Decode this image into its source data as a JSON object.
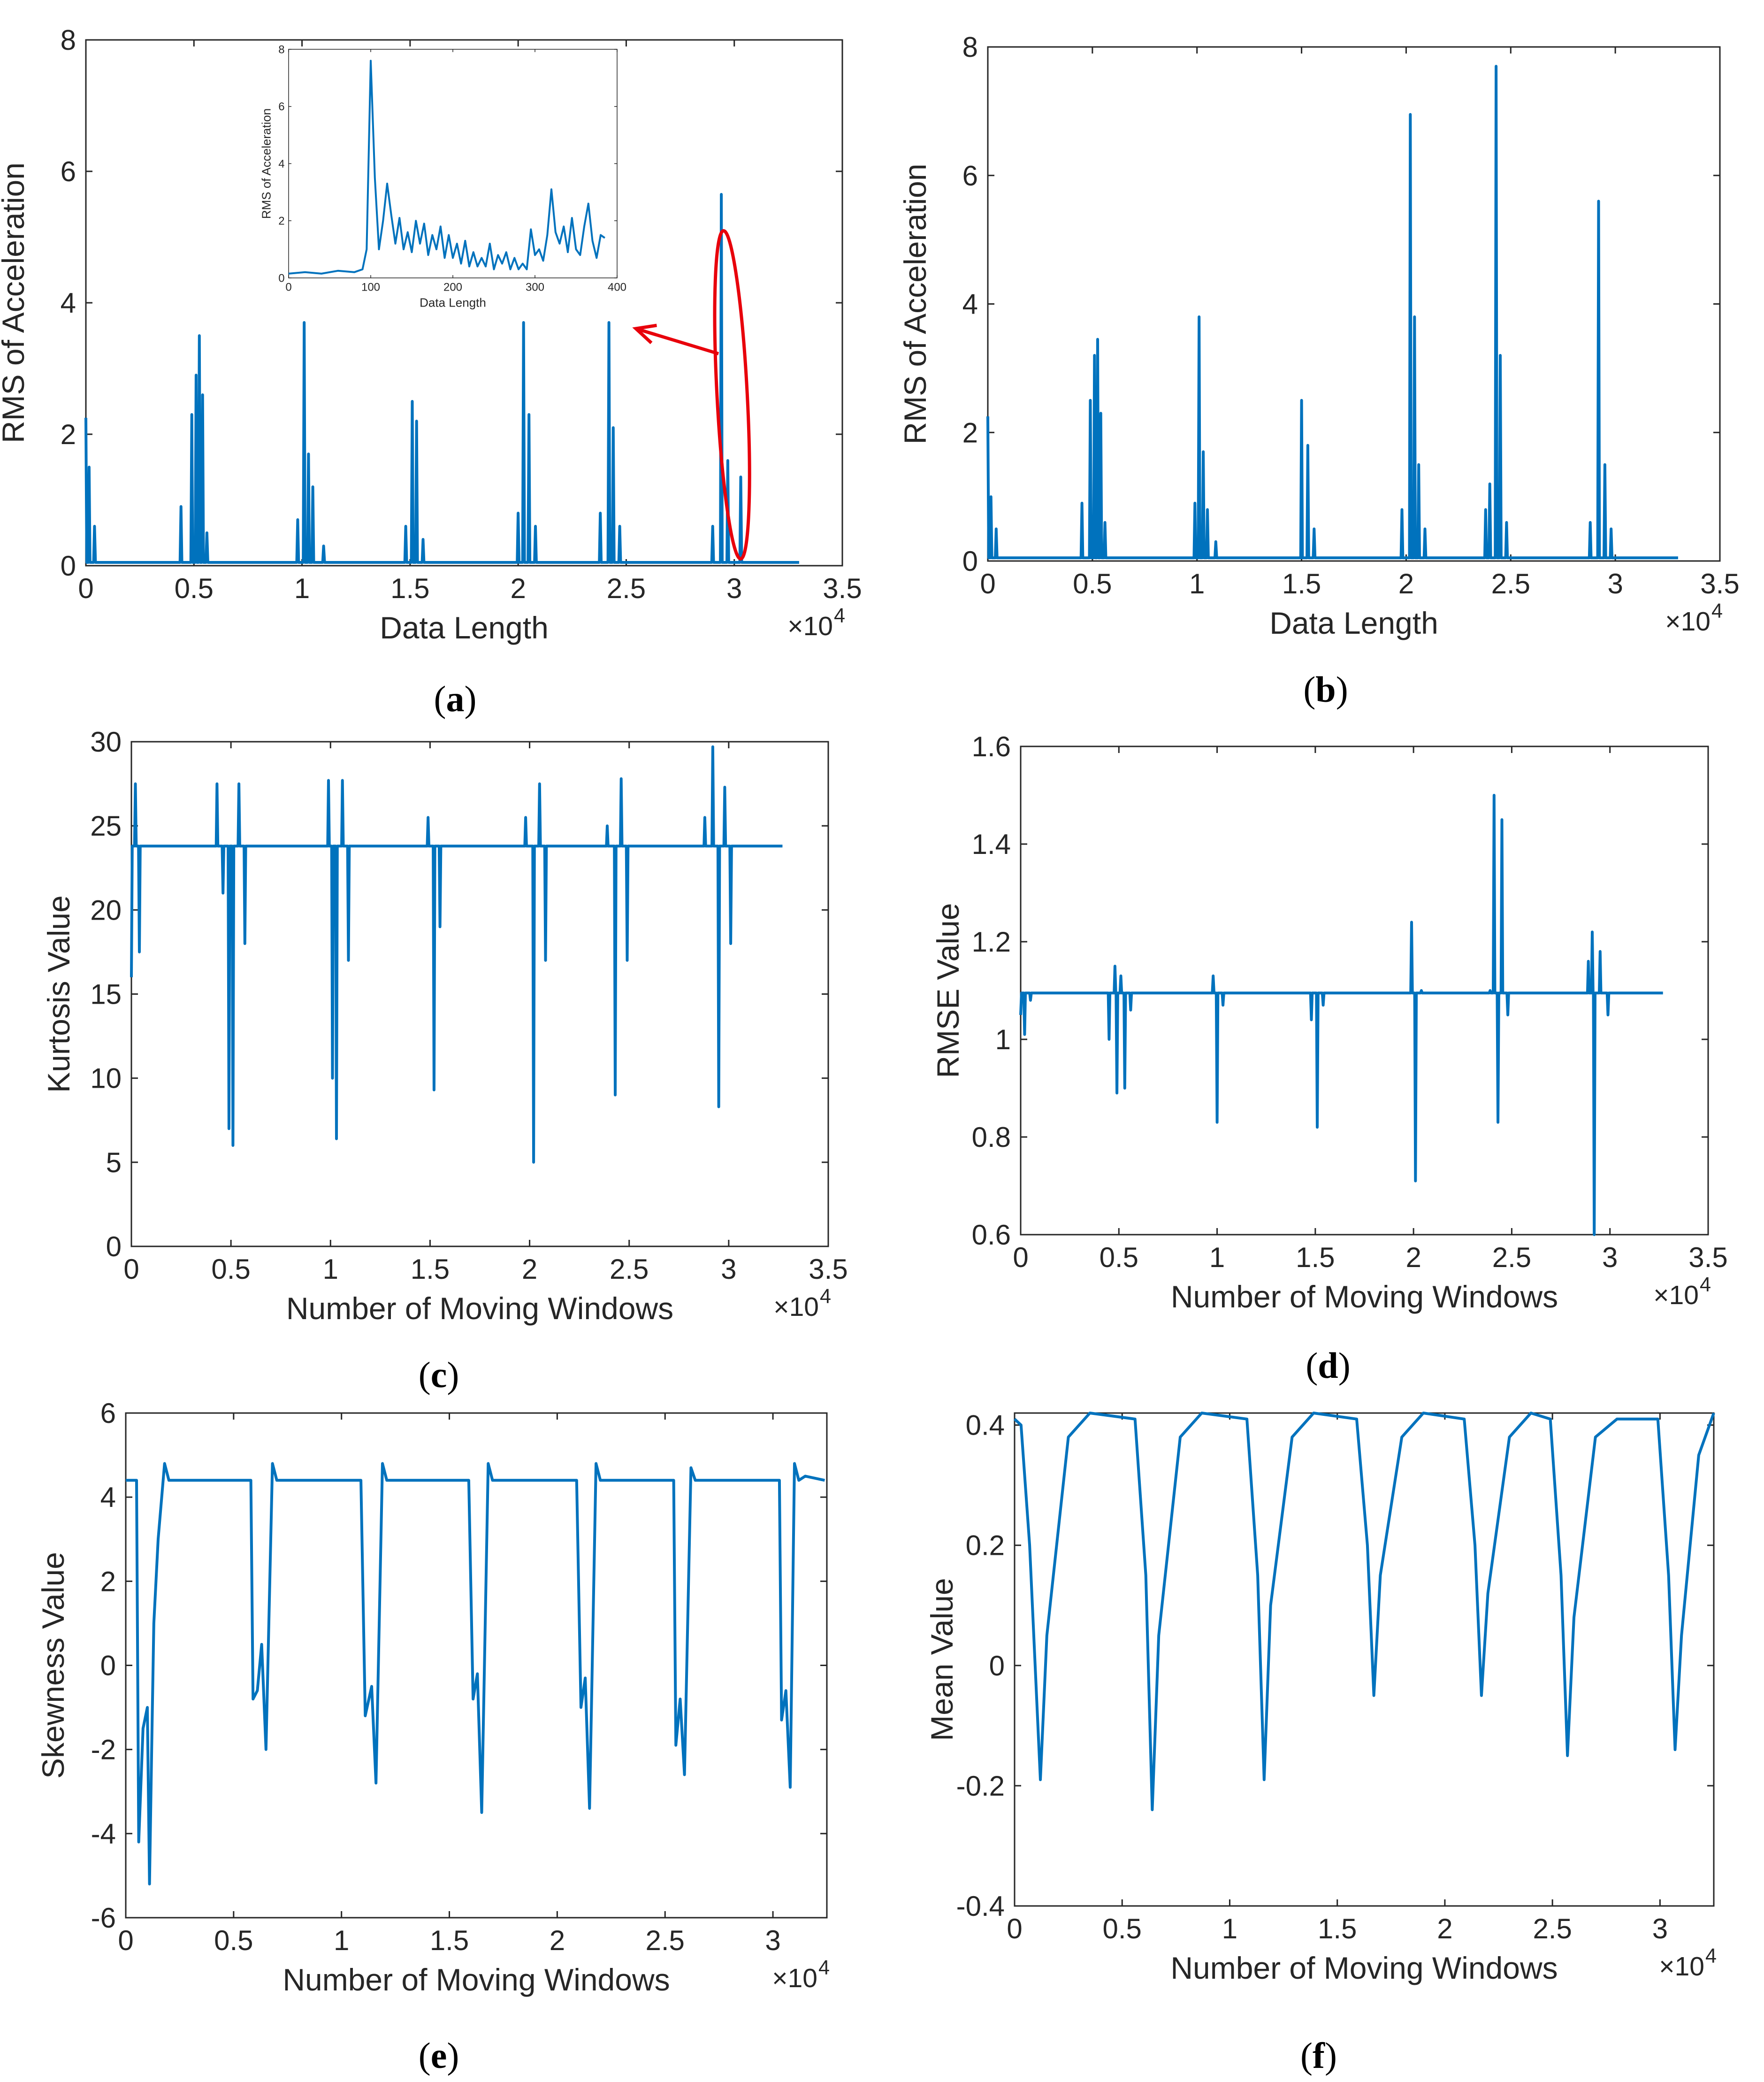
{
  "colors": {
    "line": "#0072BD",
    "annotation": "#E8000B",
    "axis": "#262626"
  },
  "captions": [
    {
      "open": "(",
      "letter": "a",
      "close": ")"
    },
    {
      "open": "(",
      "letter": "b",
      "close": ")"
    },
    {
      "open": "(",
      "letter": "c",
      "close": ")"
    },
    {
      "open": "(",
      "letter": "d",
      "close": ")"
    },
    {
      "open": "(",
      "letter": "e",
      "close": ")"
    },
    {
      "open": "(",
      "letter": "f",
      "close": ")"
    }
  ],
  "chart_data": [
    {
      "id": "a",
      "type": "line",
      "xlabel": "Data Length",
      "ylabel": "RMS of Acceleration",
      "xlim": [
        0,
        35000
      ],
      "ylim": [
        0,
        8
      ],
      "xticks": [
        0,
        5000,
        10000,
        15000,
        20000,
        25000,
        30000,
        35000
      ],
      "xticklabels": [
        "0",
        "0.5",
        "1",
        "1.5",
        "2",
        "2.5",
        "3",
        "3.5"
      ],
      "yticks": [
        0,
        2,
        4,
        6,
        8
      ],
      "yticklabels": [
        "0",
        "2",
        "4",
        "6",
        "8"
      ],
      "exponent_label": "×10",
      "exponent_power": "4",
      "baseline": 0.05,
      "end": 33000,
      "peaks": [
        [
          0,
          2.25
        ],
        [
          150,
          1.5
        ],
        [
          400,
          0.6
        ],
        [
          4400,
          0.9
        ],
        [
          4900,
          2.3
        ],
        [
          5100,
          2.9
        ],
        [
          5250,
          3.5
        ],
        [
          5400,
          2.6
        ],
        [
          5600,
          0.5
        ],
        [
          9800,
          0.7
        ],
        [
          10100,
          3.7
        ],
        [
          10300,
          1.7
        ],
        [
          10500,
          1.2
        ],
        [
          11000,
          0.3
        ],
        [
          14800,
          0.6
        ],
        [
          15100,
          2.5
        ],
        [
          15300,
          2.2
        ],
        [
          15600,
          0.4
        ],
        [
          20000,
          0.8
        ],
        [
          20250,
          3.7
        ],
        [
          20500,
          2.3
        ],
        [
          20800,
          0.6
        ],
        [
          23800,
          0.8
        ],
        [
          24200,
          3.7
        ],
        [
          24400,
          2.1
        ],
        [
          24700,
          0.6
        ],
        [
          29000,
          0.6
        ],
        [
          29400,
          5.65
        ],
        [
          29700,
          1.6
        ],
        [
          30300,
          1.35
        ]
      ],
      "inset": {
        "xlabel": "Data Length",
        "ylabel": "RMS of Acceleration",
        "xlim": [
          0,
          400
        ],
        "ylim": [
          0,
          8
        ],
        "xticks": [
          0,
          100,
          200,
          300,
          400
        ],
        "xticklabels": [
          "0",
          "100",
          "200",
          "300",
          "400"
        ],
        "yticks": [
          0,
          2,
          4,
          6,
          8
        ],
        "yticklabels": [
          "0",
          "2",
          "4",
          "6",
          "8"
        ],
        "x": [
          0,
          20,
          40,
          60,
          80,
          90,
          95,
          100,
          105,
          110,
          115,
          120,
          125,
          130,
          135,
          140,
          145,
          150,
          155,
          160,
          165,
          170,
          175,
          180,
          185,
          190,
          195,
          200,
          205,
          210,
          215,
          220,
          225,
          230,
          235,
          240,
          245,
          250,
          255,
          260,
          265,
          270,
          275,
          280,
          285,
          290,
          295,
          300,
          305,
          310,
          315,
          320,
          325,
          330,
          335,
          340,
          345,
          350,
          355,
          360,
          365,
          370,
          375,
          380,
          385
        ],
        "y": [
          0.15,
          0.2,
          0.15,
          0.25,
          0.2,
          0.3,
          1.0,
          7.6,
          3.5,
          1.0,
          2.0,
          3.3,
          2.2,
          1.2,
          2.1,
          1.0,
          1.6,
          0.9,
          2.0,
          1.2,
          1.9,
          0.8,
          1.5,
          1.0,
          1.8,
          0.7,
          1.5,
          0.7,
          1.2,
          0.5,
          1.3,
          0.4,
          0.9,
          0.4,
          0.7,
          0.4,
          1.2,
          0.3,
          0.8,
          0.5,
          0.9,
          0.3,
          0.7,
          0.3,
          0.5,
          0.3,
          1.7,
          0.8,
          1.0,
          0.6,
          1.5,
          3.1,
          1.6,
          1.2,
          1.8,
          0.9,
          2.1,
          1.0,
          0.8,
          1.8,
          2.6,
          1.3,
          0.7,
          1.5,
          1.4
        ]
      },
      "annotation": {
        "type": "ellipse",
        "center": [
          29900,
          2.6
        ],
        "rx": 700,
        "ry": 2.5
      }
    },
    {
      "id": "b",
      "type": "line",
      "xlabel": "Data Length",
      "ylabel": "RMS of Acceleration",
      "xlim": [
        0,
        35000
      ],
      "ylim": [
        0,
        8
      ],
      "xticks": [
        0,
        5000,
        10000,
        15000,
        20000,
        25000,
        30000,
        35000
      ],
      "xticklabels": [
        "0",
        "0.5",
        "1",
        "1.5",
        "2",
        "2.5",
        "3",
        "3.5"
      ],
      "yticks": [
        0,
        2,
        4,
        6,
        8
      ],
      "yticklabels": [
        "0",
        "2",
        "4",
        "6",
        "8"
      ],
      "exponent_label": "×10",
      "exponent_power": "4",
      "baseline": 0.05,
      "end": 33000,
      "peaks": [
        [
          0,
          2.25
        ],
        [
          150,
          1.0
        ],
        [
          400,
          0.5
        ],
        [
          4500,
          0.9
        ],
        [
          4900,
          2.5
        ],
        [
          5100,
          3.2
        ],
        [
          5250,
          3.45
        ],
        [
          5400,
          2.3
        ],
        [
          5600,
          0.6
        ],
        [
          9900,
          0.9
        ],
        [
          10100,
          3.8
        ],
        [
          10300,
          1.7
        ],
        [
          10500,
          0.8
        ],
        [
          10900,
          0.3
        ],
        [
          15000,
          2.5
        ],
        [
          15300,
          1.8
        ],
        [
          15600,
          0.5
        ],
        [
          19800,
          0.8
        ],
        [
          20200,
          6.95
        ],
        [
          20400,
          3.8
        ],
        [
          20600,
          1.5
        ],
        [
          20900,
          0.5
        ],
        [
          23800,
          0.8
        ],
        [
          24000,
          1.2
        ],
        [
          24300,
          7.7
        ],
        [
          24500,
          3.2
        ],
        [
          24800,
          0.6
        ],
        [
          28800,
          0.6
        ],
        [
          29200,
          5.6
        ],
        [
          29500,
          1.5
        ],
        [
          29800,
          0.5
        ]
      ]
    },
    {
      "id": "c",
      "type": "line",
      "xlabel": "Number of Moving Windows",
      "ylabel": "Kurtosis Value",
      "xlim": [
        0,
        35000
      ],
      "ylim": [
        0,
        30
      ],
      "xticks": [
        0,
        5000,
        10000,
        15000,
        20000,
        25000,
        30000,
        35000
      ],
      "xticklabels": [
        "0",
        "0.5",
        "1",
        "1.5",
        "2",
        "2.5",
        "3",
        "3.5"
      ],
      "yticks": [
        0,
        5,
        10,
        15,
        20,
        25,
        30
      ],
      "yticklabels": [
        "0",
        "5",
        "10",
        "15",
        "20",
        "25",
        "30"
      ],
      "exponent_label": "×10",
      "exponent_power": "4",
      "baseline": 23.8,
      "end": 32700,
      "peaks": [
        [
          0,
          16
        ],
        [
          200,
          27.5
        ],
        [
          400,
          17.5
        ],
        [
          4300,
          27.5
        ],
        [
          4600,
          21
        ],
        [
          4900,
          7
        ],
        [
          5100,
          6
        ],
        [
          5400,
          27.5
        ],
        [
          5700,
          18
        ],
        [
          9900,
          27.7
        ],
        [
          10100,
          10
        ],
        [
          10300,
          6.4
        ],
        [
          10600,
          27.7
        ],
        [
          10900,
          17
        ],
        [
          14900,
          25.5
        ],
        [
          15200,
          9.3
        ],
        [
          15500,
          19
        ],
        [
          19800,
          25.5
        ],
        [
          20200,
          5
        ],
        [
          20500,
          27.5
        ],
        [
          20800,
          17
        ],
        [
          23900,
          25
        ],
        [
          24300,
          9
        ],
        [
          24600,
          27.8
        ],
        [
          24900,
          17
        ],
        [
          28800,
          25.5
        ],
        [
          29200,
          29.7
        ],
        [
          29500,
          8.3
        ],
        [
          29800,
          27.3
        ],
        [
          30100,
          18
        ]
      ]
    },
    {
      "id": "d",
      "type": "line",
      "xlabel": "Number of Moving Windows",
      "ylabel": "RMSE Value",
      "xlim": [
        0,
        35000
      ],
      "ylim": [
        0.6,
        1.6
      ],
      "xticks": [
        0,
        5000,
        10000,
        15000,
        20000,
        25000,
        30000,
        35000
      ],
      "xticklabels": [
        "0",
        "0.5",
        "1",
        "1.5",
        "2",
        "2.5",
        "3",
        "3.5"
      ],
      "yticks": [
        0.6,
        0.8,
        1.0,
        1.2,
        1.4,
        1.6
      ],
      "yticklabels": [
        "0.6",
        "0.8",
        "1",
        "1.2",
        "1.4",
        "1.6"
      ],
      "exponent_label": "×10",
      "exponent_power": "4",
      "baseline": 1.095,
      "end": 32700,
      "peaks": [
        [
          0,
          1.05
        ],
        [
          200,
          1.01
        ],
        [
          500,
          1.08
        ],
        [
          4500,
          1.0
        ],
        [
          4800,
          1.15
        ],
        [
          4900,
          0.89
        ],
        [
          5100,
          1.13
        ],
        [
          5300,
          0.9
        ],
        [
          5600,
          1.06
        ],
        [
          9800,
          1.13
        ],
        [
          10000,
          0.83
        ],
        [
          10300,
          1.07
        ],
        [
          14800,
          1.04
        ],
        [
          15100,
          0.82
        ],
        [
          15400,
          1.07
        ],
        [
          19900,
          1.24
        ],
        [
          20100,
          0.71
        ],
        [
          20400,
          1.1
        ],
        [
          23900,
          1.1
        ],
        [
          24100,
          1.5
        ],
        [
          24300,
          0.83
        ],
        [
          24500,
          1.45
        ],
        [
          24800,
          1.05
        ],
        [
          28900,
          1.16
        ],
        [
          29100,
          1.22
        ],
        [
          29200,
          0.6
        ],
        [
          29500,
          1.18
        ],
        [
          29900,
          1.05
        ]
      ]
    },
    {
      "id": "e",
      "type": "line",
      "xlabel": "Number of Moving Windows",
      "ylabel": "Skewness Value",
      "xlim": [
        0,
        32500
      ],
      "ylim": [
        -6,
        6
      ],
      "xticks": [
        0,
        5000,
        10000,
        15000,
        20000,
        25000,
        30000
      ],
      "xticklabels": [
        "0",
        "0.5",
        "1",
        "1.5",
        "2",
        "2.5",
        "3"
      ],
      "yticks": [
        -6,
        -4,
        -2,
        0,
        2,
        4,
        6
      ],
      "yticklabels": [
        "-6",
        "-4",
        "-2",
        "0",
        "2",
        "4",
        "6"
      ],
      "exponent_label": "×10",
      "exponent_power": "4",
      "x": [
        0,
        500,
        600,
        800,
        1000,
        1100,
        1200,
        1300,
        1500,
        1800,
        2000,
        5800,
        5900,
        6100,
        6300,
        6500,
        6800,
        7000,
        10900,
        11100,
        11400,
        11600,
        11900,
        12100,
        15900,
        16100,
        16300,
        16500,
        16800,
        17000,
        20900,
        21100,
        21300,
        21500,
        21800,
        22000,
        25400,
        25500,
        25700,
        25900,
        26200,
        26400,
        30300,
        30400,
        30600,
        30800,
        31000,
        31200,
        31500,
        32400
      ],
      "y": [
        4.4,
        4.4,
        -4.2,
        -1.5,
        -1.0,
        -5.2,
        -2.0,
        1.0,
        3.0,
        4.8,
        4.4,
        4.4,
        -0.8,
        -0.6,
        0.5,
        -2.0,
        4.8,
        4.4,
        4.4,
        -1.2,
        -0.5,
        -2.8,
        4.8,
        4.4,
        4.4,
        -0.8,
        -0.2,
        -3.5,
        4.8,
        4.4,
        4.4,
        -1.0,
        -0.3,
        -3.4,
        4.8,
        4.4,
        4.4,
        -1.9,
        -0.8,
        -2.6,
        4.7,
        4.4,
        4.4,
        -1.3,
        -0.6,
        -2.9,
        4.8,
        4.4,
        4.5,
        4.4
      ]
    },
    {
      "id": "f",
      "type": "line",
      "xlabel": "Number of Moving Windows",
      "ylabel": "Mean Value",
      "xlim": [
        0,
        32500
      ],
      "ylim": [
        -0.4,
        0.42
      ],
      "xticks": [
        0,
        5000,
        10000,
        15000,
        20000,
        25000,
        30000
      ],
      "xticklabels": [
        "0",
        "0.5",
        "1",
        "1.5",
        "2",
        "2.5",
        "3"
      ],
      "yticks": [
        -0.4,
        -0.2,
        0,
        0.2,
        0.4
      ],
      "yticklabels": [
        "-0.4",
        "-0.2",
        "0",
        "0.2",
        "0.4"
      ],
      "exponent_label": "×10",
      "exponent_power": "4",
      "x": [
        0,
        300,
        700,
        1200,
        1500,
        2500,
        3500,
        5600,
        6100,
        6400,
        6700,
        7700,
        8700,
        10800,
        11300,
        11600,
        11900,
        12900,
        13900,
        15900,
        16400,
        16700,
        17000,
        18000,
        19000,
        20900,
        21400,
        21700,
        22000,
        23000,
        24000,
        24900,
        25400,
        25700,
        26000,
        27000,
        28000,
        29900,
        30400,
        30700,
        31000,
        31800,
        32500
      ],
      "y": [
        0.41,
        0.4,
        0.2,
        -0.19,
        0.05,
        0.38,
        0.42,
        0.41,
        0.15,
        -0.24,
        0.05,
        0.38,
        0.42,
        0.41,
        0.15,
        -0.19,
        0.1,
        0.38,
        0.42,
        0.41,
        0.2,
        -0.05,
        0.15,
        0.38,
        0.42,
        0.41,
        0.2,
        -0.05,
        0.12,
        0.38,
        0.42,
        0.41,
        0.15,
        -0.15,
        0.08,
        0.38,
        0.41,
        0.41,
        0.15,
        -0.14,
        0.05,
        0.35,
        0.42
      ]
    }
  ]
}
